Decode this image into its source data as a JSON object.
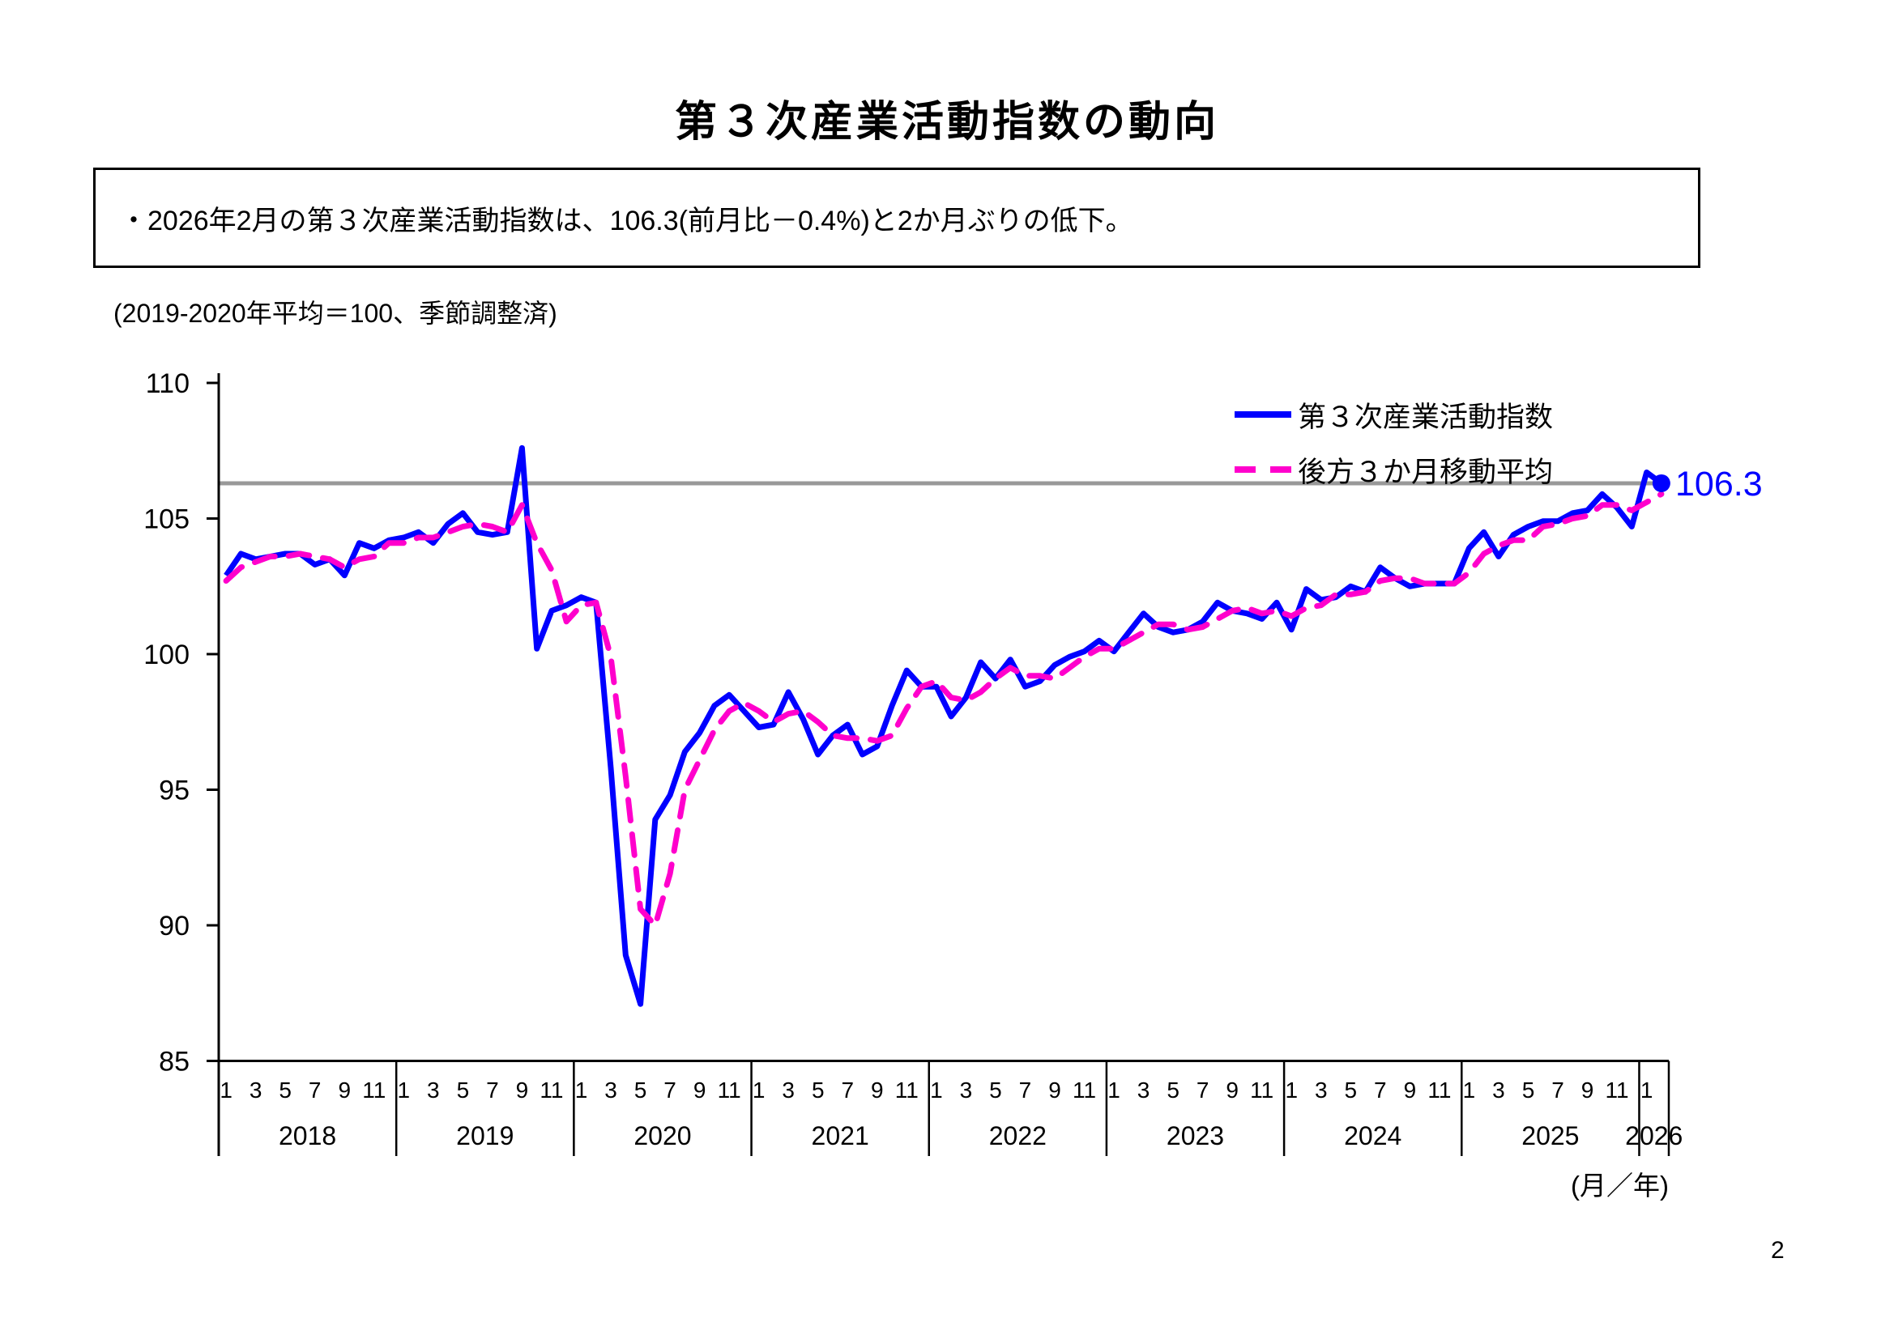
{
  "page": {
    "title": "第３次産業活動指数の動向",
    "page_number": "2"
  },
  "summary": {
    "text": "・2026年2月の第３次産業活動指数は、106.3(前月比－0.4%)と2か月ぶりの低下。"
  },
  "chart_data": {
    "type": "line",
    "note": "(2019-2020年平均＝100、季節調整済)",
    "x_axis_unit_label": "(月／年)",
    "years": [
      2018,
      2019,
      2020,
      2021,
      2022,
      2023,
      2024,
      2025,
      2026
    ],
    "month_tick_labels": [
      1,
      3,
      5,
      7,
      9,
      11
    ],
    "x_start": "2018-01",
    "x_end": "2026-02",
    "ylim": [
      85,
      110
    ],
    "y_ticks": [
      85,
      90,
      95,
      100,
      105,
      110
    ],
    "grid": false,
    "legend_position": "top-right",
    "reference_line_value": 106.3,
    "end_point_label": "106.3",
    "colors": {
      "index_line": "#0000ff",
      "moving_average_line": "#ff00cc",
      "reference_line": "#999999",
      "end_label_text": "#0000ff",
      "axis": "#000000"
    },
    "series": [
      {
        "name": "第３次産業活動指数",
        "style": "solid",
        "color": "#0000ff",
        "values": [
          102.9,
          103.7,
          103.5,
          103.6,
          103.7,
          103.7,
          103.3,
          103.5,
          102.9,
          104.1,
          103.9,
          104.2,
          104.3,
          104.5,
          104.1,
          104.8,
          105.2,
          104.5,
          104.4,
          104.5,
          107.6,
          100.2,
          101.6,
          101.8,
          102.1,
          101.9,
          95.8,
          88.9,
          87.1,
          93.9,
          94.8,
          96.4,
          97.1,
          98.1,
          98.5,
          97.9,
          97.3,
          97.4,
          98.6,
          97.6,
          96.3,
          97.0,
          97.4,
          96.3,
          96.6,
          98.1,
          99.4,
          98.8,
          98.8,
          97.7,
          98.4,
          99.7,
          99.1,
          99.8,
          98.8,
          99.0,
          99.6,
          99.9,
          100.1,
          100.5,
          100.1,
          100.8,
          101.5,
          101.0,
          100.8,
          100.9,
          101.2,
          101.9,
          101.6,
          101.5,
          101.3,
          101.9,
          100.9,
          102.4,
          102.0,
          102.1,
          102.5,
          102.3,
          103.2,
          102.8,
          102.5,
          102.6,
          102.6,
          102.6,
          103.9,
          104.5,
          103.6,
          104.4,
          104.7,
          104.9,
          104.9,
          105.2,
          105.3,
          105.9,
          105.4,
          104.7,
          106.7,
          106.3
        ]
      },
      {
        "name": "後方３か月移動平均",
        "style": "dashed",
        "color": "#ff00cc",
        "values": [
          102.7,
          103.2,
          103.4,
          103.6,
          103.6,
          103.7,
          103.6,
          103.5,
          103.2,
          103.5,
          103.6,
          104.1,
          104.1,
          104.3,
          104.3,
          104.5,
          104.7,
          104.8,
          104.7,
          104.5,
          105.5,
          104.1,
          103.1,
          101.2,
          101.8,
          101.9,
          99.9,
          95.5,
          90.6,
          90.0,
          91.9,
          95.0,
          96.1,
          97.2,
          97.9,
          98.2,
          97.9,
          97.5,
          97.8,
          97.9,
          97.5,
          97.0,
          96.9,
          96.9,
          96.8,
          97.0,
          98.0,
          98.8,
          99.0,
          98.4,
          98.3,
          98.6,
          99.1,
          99.5,
          99.2,
          99.2,
          99.1,
          99.5,
          99.9,
          100.2,
          100.2,
          100.5,
          100.8,
          101.1,
          101.1,
          100.9,
          101.0,
          101.3,
          101.6,
          101.7,
          101.5,
          101.6,
          101.4,
          101.7,
          101.8,
          102.2,
          102.2,
          102.3,
          102.7,
          102.8,
          102.8,
          102.6,
          102.6,
          102.6,
          103.0,
          103.7,
          104.0,
          104.2,
          104.2,
          104.7,
          104.8,
          105.0,
          105.1,
          105.5,
          105.5,
          105.3,
          105.6,
          105.9
        ]
      }
    ]
  }
}
